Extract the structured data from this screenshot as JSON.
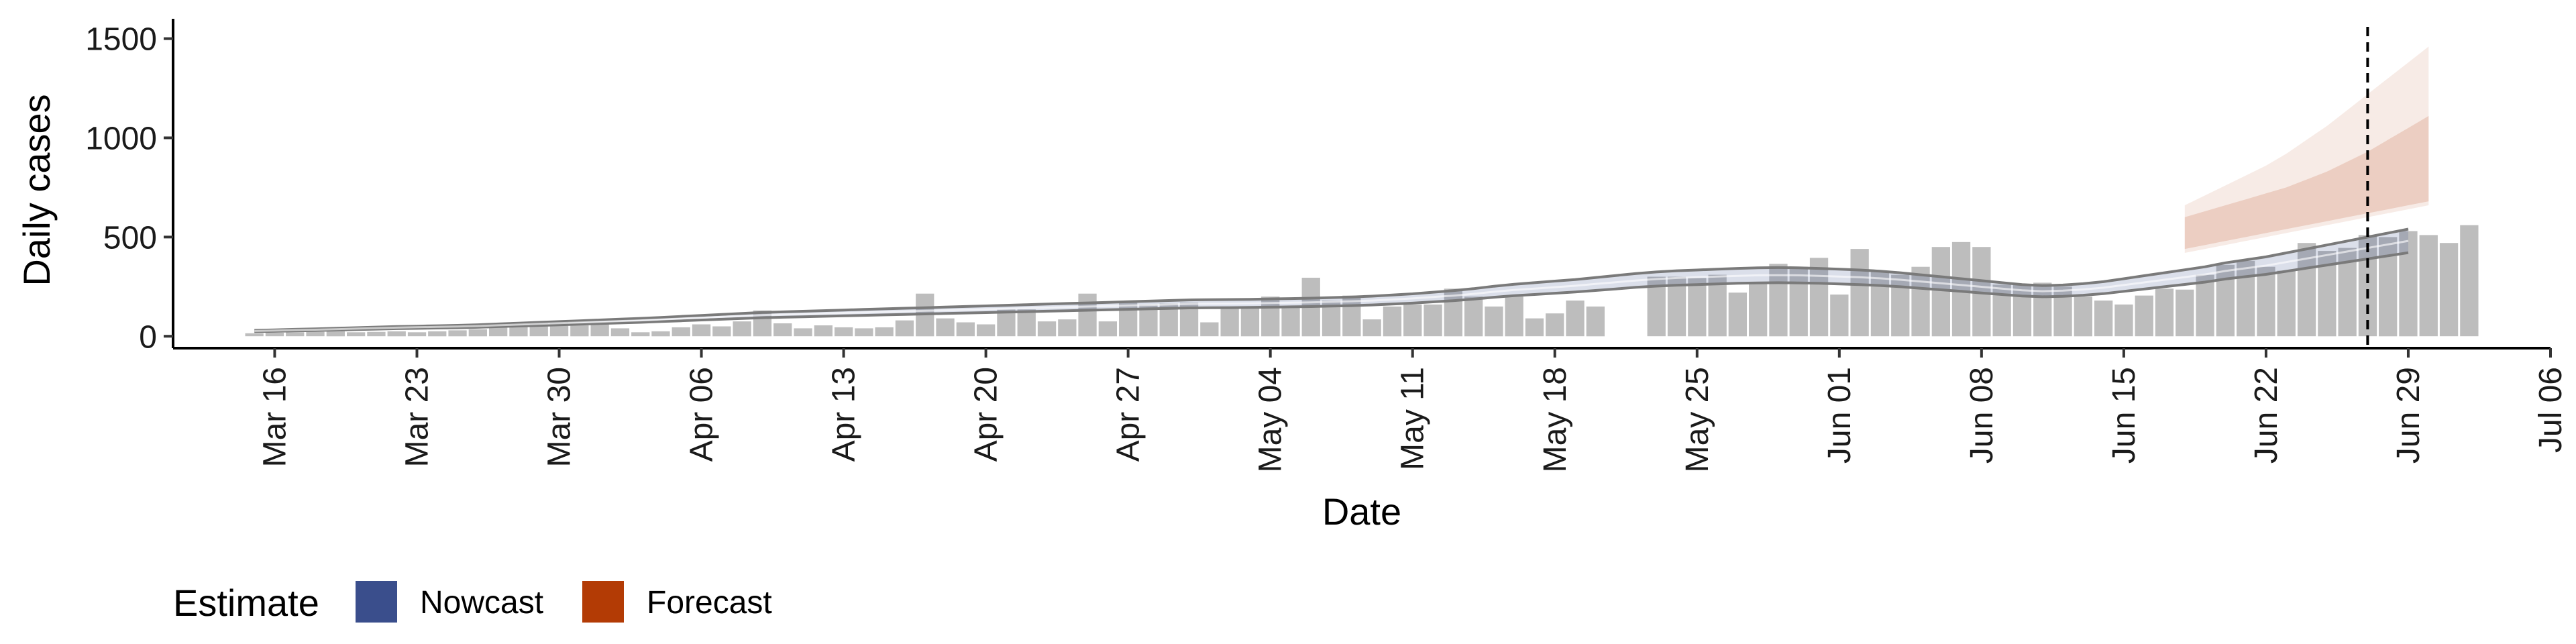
{
  "chart_data": {
    "type": "bar",
    "title": "",
    "xlabel": "Date",
    "ylabel": "Daily cases",
    "ylim": [
      -60,
      1600
    ],
    "yticks": [
      0,
      500,
      1000,
      1500
    ],
    "xlim": [
      "2020-03-11",
      "2020-07-06"
    ],
    "xticks": [
      {
        "date": "2020-03-16",
        "label": "Mar 16"
      },
      {
        "date": "2020-03-23",
        "label": "Mar 23"
      },
      {
        "date": "2020-03-30",
        "label": "Mar 30"
      },
      {
        "date": "2020-04-06",
        "label": "Apr 06"
      },
      {
        "date": "2020-04-13",
        "label": "Apr 13"
      },
      {
        "date": "2020-04-20",
        "label": "Apr 20"
      },
      {
        "date": "2020-04-27",
        "label": "Apr 27"
      },
      {
        "date": "2020-05-04",
        "label": "May 04"
      },
      {
        "date": "2020-05-11",
        "label": "May 11"
      },
      {
        "date": "2020-05-18",
        "label": "May 18"
      },
      {
        "date": "2020-05-25",
        "label": "May 25"
      },
      {
        "date": "2020-06-01",
        "label": "Jun 01"
      },
      {
        "date": "2020-06-08",
        "label": "Jun 08"
      },
      {
        "date": "2020-06-15",
        "label": "Jun 15"
      },
      {
        "date": "2020-06-22",
        "label": "Jun 22"
      },
      {
        "date": "2020-06-29",
        "label": "Jun 29"
      },
      {
        "date": "2020-07-06",
        "label": "Jul 06"
      }
    ],
    "grid": false,
    "legend_position": "bottom-left",
    "legend": {
      "title": "Estimate",
      "items": [
        {
          "label": "Nowcast",
          "color": "#3A4E8C"
        },
        {
          "label": "Forecast",
          "color": "#B33B05"
        }
      ]
    },
    "colors": {
      "bars": "#BDBDBD",
      "nowcast": "#3A4E8C",
      "forecast": "#B33B05",
      "outline": "#7A7A7A",
      "vline": "#000000"
    },
    "reference_line": {
      "date": "2020-06-27",
      "style": "dashed"
    },
    "bars": {
      "start_date": "2020-03-15",
      "values": [
        15,
        18,
        20,
        22,
        25,
        20,
        22,
        25,
        20,
        25,
        30,
        35,
        45,
        55,
        65,
        70,
        55,
        60,
        40,
        20,
        25,
        45,
        60,
        50,
        75,
        130,
        65,
        40,
        55,
        45,
        40,
        45,
        80,
        215,
        90,
        70,
        60,
        135,
        135,
        75,
        85,
        215,
        75,
        170,
        160,
        165,
        170,
        70,
        150,
        145,
        200,
        150,
        295,
        180,
        205,
        85,
        150,
        160,
        160,
        240,
        200,
        150,
        200,
        90,
        115,
        180,
        150,
        null,
        null,
        300,
        300,
        295,
        310,
        220,
        270,
        365,
        350,
        395,
        210,
        440,
        330,
        310,
        350,
        450,
        475,
        450,
        260,
        260,
        270,
        250,
        200,
        180,
        160,
        205,
        240,
        235,
        310,
        360,
        380,
        350,
        330,
        470,
        430,
        445,
        510,
        500,
        530,
        510,
        470,
        560
      ]
    },
    "series": [
      {
        "name": "Nowcast",
        "start_date": "2020-03-15",
        "upper": [
          30,
          32,
          35,
          37,
          40,
          43,
          46,
          49,
          51,
          53,
          55,
          58,
          62,
          66,
          70,
          74,
          78,
          82,
          86,
          90,
          95,
          100,
          105,
          110,
          115,
          120,
          123,
          126,
          129,
          132,
          135,
          138,
          141,
          144,
          147,
          150,
          153,
          156,
          159,
          162,
          165,
          168,
          171,
          174,
          177,
          180,
          183,
          184,
          185,
          186,
          188,
          190,
          192,
          195,
          198,
          202,
          208,
          214,
          222,
          230,
          240,
          252,
          262,
          270,
          278,
          286,
          296,
          306,
          316,
          324,
          330,
          334,
          338,
          342,
          345,
          346,
          345,
          342,
          338,
          334,
          328,
          320,
          310,
          300,
          290,
          280,
          270,
          260,
          255,
          258,
          265,
          275,
          290,
          305,
          320,
          335,
          350,
          370,
          385,
          400,
          420,
          440,
          460,
          480,
          500,
          520,
          540
        ]
      },
      {
        "name": "Forecast",
        "start_date": "2020-06-18",
        "median": [
          520,
          545,
          570,
          595,
          620,
          645,
          670,
          700,
          730,
          760,
          800,
          840,
          880
        ],
        "inner_lower": [
          440,
          460,
          480,
          500,
          520,
          540,
          560,
          580,
          600,
          620,
          640,
          660,
          680
        ],
        "inner_upper": [
          600,
          630,
          660,
          690,
          720,
          750,
          790,
          830,
          880,
          930,
          990,
          1050,
          1110
        ],
        "outer_lower": [
          420,
          440,
          460,
          480,
          500,
          520,
          540,
          560,
          580,
          600,
          620,
          640,
          660
        ],
        "outer_upper": [
          660,
          710,
          760,
          810,
          860,
          920,
          990,
          1060,
          1140,
          1220,
          1300,
          1380,
          1460
        ]
      }
    ]
  }
}
